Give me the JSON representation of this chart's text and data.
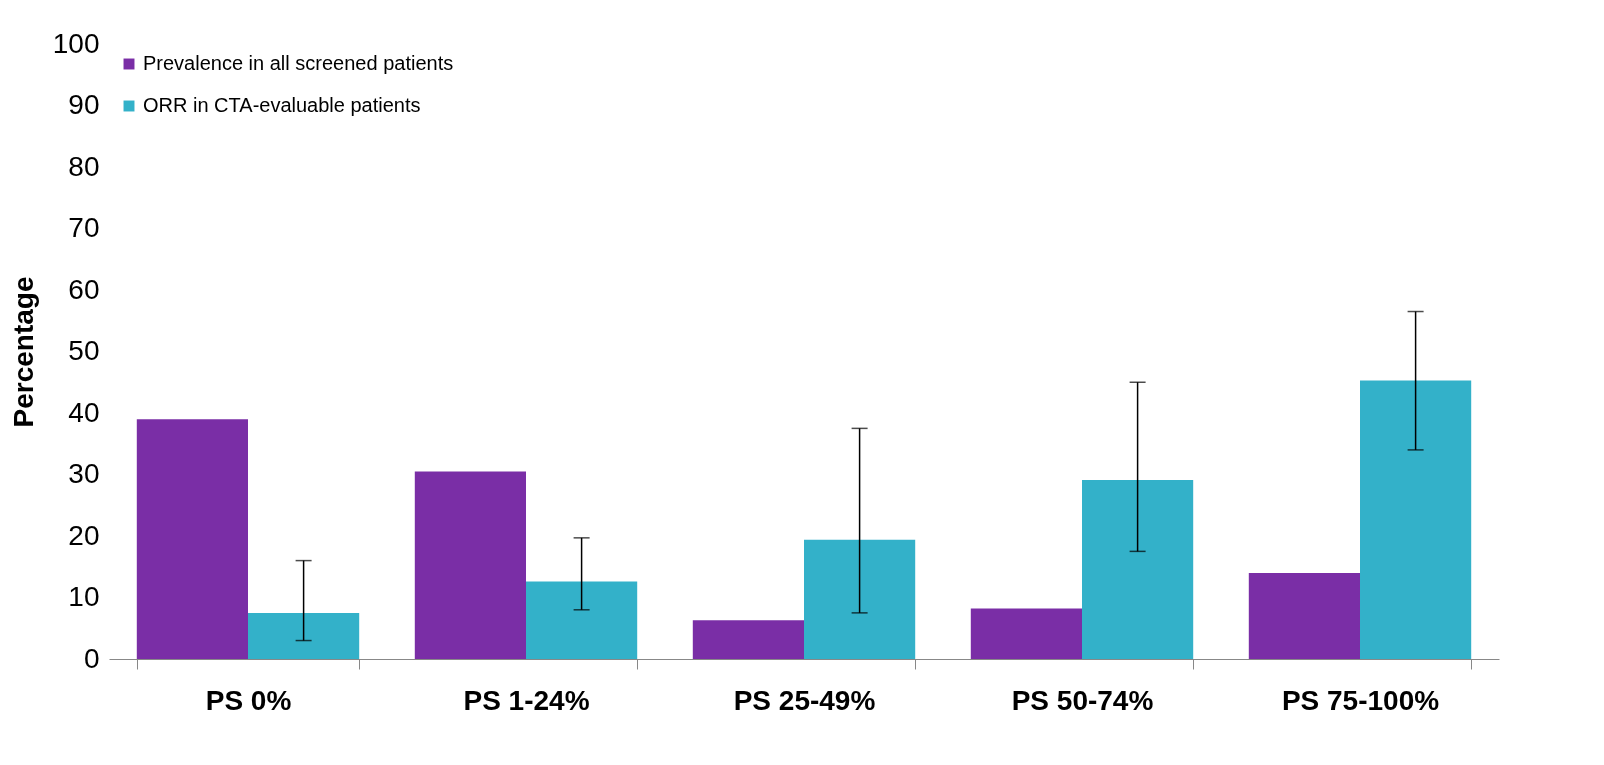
{
  "chart_data": {
    "type": "bar",
    "ylabel": "Percentage",
    "categories": [
      "PS 0%",
      "PS 1-24%",
      "PS 25-49%",
      "PS 50-74%",
      "PS 75-100%"
    ],
    "series": [
      {
        "name": "Prevalence in all screened patients",
        "color": "#7a2ea6",
        "values": [
          39,
          30.5,
          6.3,
          8.2,
          14
        ]
      },
      {
        "name": "ORR in CTA-evaluable patients",
        "color": "#33b1c9",
        "values": [
          7.5,
          12.6,
          19.4,
          29.1,
          45.3
        ],
        "errors": [
          [
            3,
            16
          ],
          [
            8,
            19.7
          ],
          [
            7.5,
            37.5
          ],
          [
            17.5,
            45
          ],
          [
            34,
            56.5
          ]
        ]
      }
    ],
    "ylim": [
      0,
      100
    ],
    "yticks": [
      0,
      10,
      20,
      30,
      40,
      50,
      60,
      70,
      80,
      90,
      100
    ],
    "legend": "top left"
  }
}
